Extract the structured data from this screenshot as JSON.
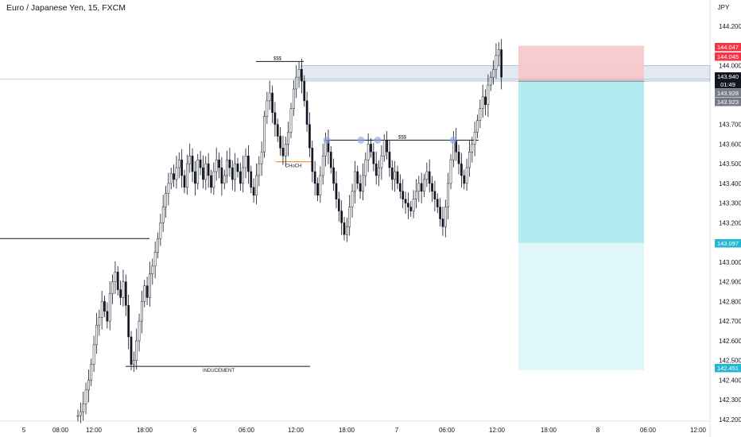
{
  "header": {
    "title": "Euro / Japanese Yen, 15, FXCM"
  },
  "chart_data": {
    "type": "candlestick",
    "title": "Euro / Japanese Yen, 15, FXCM",
    "currency": "JPY",
    "ylim": [
      142.2,
      144.3
    ],
    "y_ticks": [
      "144.200",
      "144.000",
      "143.700",
      "143.600",
      "143.500",
      "143.400",
      "143.300",
      "143.200",
      "143.000",
      "142.900",
      "142.800",
      "142.700",
      "142.600",
      "142.500",
      "142.400",
      "142.300",
      "142.200"
    ],
    "x_ticks": [
      "5",
      "08:00",
      "12:00",
      "18:00",
      "6",
      "06:00",
      "12:00",
      "18:00",
      "7",
      "06:00",
      "12:00",
      "18:00",
      "8",
      "06:00",
      "12:00"
    ],
    "price_badges": [
      {
        "label": "144.047",
        "color": "#f23645"
      },
      {
        "label": "144.045",
        "color": "#f23645"
      },
      {
        "label": "143.940",
        "color": "#131722"
      },
      {
        "label": "01:49",
        "color": "#131722"
      },
      {
        "label": "143.928",
        "color": "#787b86"
      },
      {
        "label": "143.923",
        "color": "#787b86"
      },
      {
        "label": "143.097",
        "color": "#22b8cf"
      },
      {
        "label": "142.451",
        "color": "#22b8cf"
      }
    ],
    "annotations": [
      {
        "text": "$$$",
        "price": 144.02
      },
      {
        "text": "$$$",
        "price": 143.62
      },
      {
        "text": "CHoCH",
        "price": 143.5
      },
      {
        "text": "INDUCEMENT",
        "price": 142.47
      }
    ],
    "levels": [
      {
        "name": "left-horizontal",
        "price": 143.12
      },
      {
        "name": "inducement",
        "price": 142.47
      },
      {
        "name": "upper-liquidity",
        "price": 144.02
      },
      {
        "name": "equal-highs",
        "price": 143.62
      },
      {
        "name": "choch",
        "price": 143.51
      }
    ],
    "zone": {
      "top": 144.0,
      "bottom": 143.92
    },
    "position": {
      "entry": 143.92,
      "stop": 144.05,
      "target": 142.451,
      "tp_price": 143.097
    },
    "liquidity_points": [
      143.62,
      143.62,
      143.62,
      143.62
    ],
    "colors": {
      "up": "#131722",
      "down": "#131722",
      "stop_zone": "#f7c6c9",
      "profit_zone": "#b2ebf2",
      "zone_fill": "#e3e8f1",
      "accent": "#22b8cf"
    },
    "close_series": [
      142.22,
      142.24,
      142.28,
      142.35,
      142.4,
      142.48,
      142.58,
      142.68,
      142.72,
      142.8,
      142.75,
      142.7,
      142.84,
      142.9,
      142.95,
      142.86,
      142.82,
      142.9,
      142.78,
      142.62,
      142.48,
      142.5,
      142.6,
      142.7,
      142.8,
      142.88,
      142.82,
      142.94,
      142.98,
      143.05,
      143.12,
      143.2,
      143.28,
      143.35,
      143.4,
      143.45,
      143.42,
      143.48,
      143.52,
      143.44,
      143.38,
      143.5,
      143.54,
      143.46,
      143.4,
      143.52,
      143.48,
      143.42,
      143.5,
      143.44,
      143.38,
      143.46,
      143.52,
      143.48,
      143.4,
      143.44,
      143.52,
      143.48,
      143.42,
      143.5,
      143.46,
      143.4,
      143.48,
      143.54,
      143.46,
      143.38,
      143.34,
      143.44,
      143.5,
      143.56,
      143.74,
      143.82,
      143.86,
      143.76,
      143.7,
      143.64,
      143.58,
      143.54,
      143.6,
      143.66,
      143.78,
      143.88,
      143.94,
      143.98,
      143.92,
      143.82,
      143.7,
      143.58,
      143.46,
      143.4,
      143.34,
      143.44,
      143.54,
      143.62,
      143.56,
      143.48,
      143.4,
      143.32,
      143.26,
      143.2,
      143.14,
      143.18,
      143.28,
      143.36,
      143.46,
      143.4,
      143.36,
      143.44,
      143.52,
      143.6,
      143.56,
      143.5,
      143.44,
      143.48,
      143.54,
      143.62,
      143.56,
      143.48,
      143.42,
      143.46,
      143.4,
      143.36,
      143.32,
      143.3,
      143.28,
      143.26,
      143.32,
      143.36,
      143.4,
      143.36,
      143.42,
      143.46,
      143.4,
      143.36,
      143.32,
      143.28,
      143.22,
      143.18,
      143.28,
      143.4,
      143.52,
      143.62,
      143.56,
      143.5,
      143.44,
      143.4,
      143.48,
      143.56,
      143.6,
      143.66,
      143.72,
      143.78,
      143.84,
      143.8,
      143.9,
      143.94,
      143.98,
      144.05,
      144.08,
      143.94
    ]
  }
}
